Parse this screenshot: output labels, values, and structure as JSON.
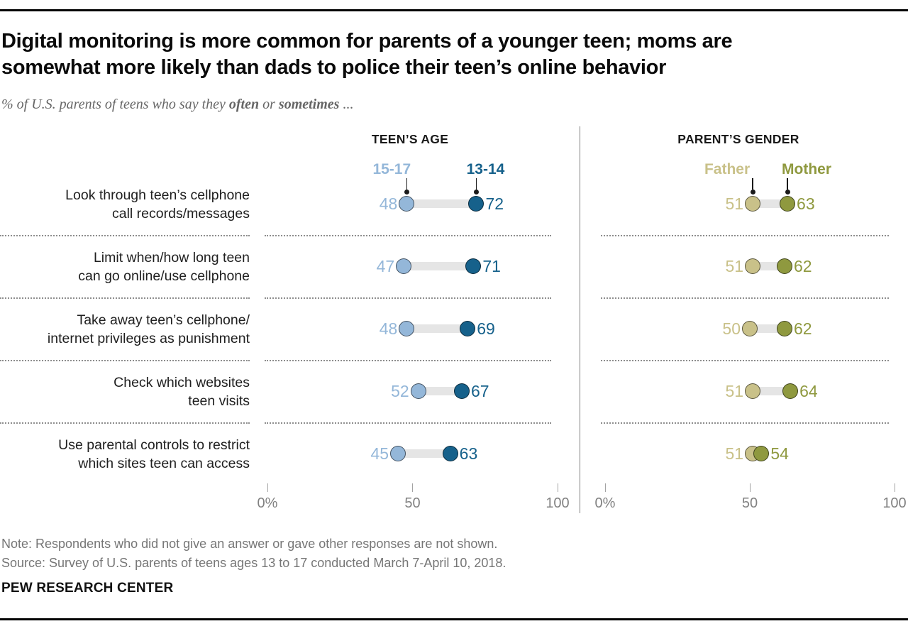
{
  "header": {
    "title_lines": [
      "Digital monitoring is more common for parents of a younger teen; moms are",
      "somewhat more likely than dads to police their teen’s online behavior"
    ],
    "subtitle": {
      "prefix": "% of U.S. parents of teens who say they ",
      "bold1": "often",
      "mid": " or ",
      "bold2": "sometimes",
      "suffix": " ..."
    }
  },
  "chart_data": {
    "type": "scatter",
    "subtype": "dumbbell-dot-plot",
    "categories": [
      [
        "Look through teen’s cellphone",
        "call records/messages"
      ],
      [
        "Limit when/how long teen",
        "can go online/use cellphone"
      ],
      [
        "Take away teen’s cellphone/",
        "internet privileges as punishment"
      ],
      [
        "Check which websites",
        "teen visits"
      ],
      [
        "Use parental controls to restrict",
        "which sites teen can access"
      ]
    ],
    "panels": [
      {
        "title": "TEEN’S AGE",
        "series": [
          {
            "name": "15-17",
            "color": "#94b7d9",
            "values": [
              48,
              47,
              48,
              52,
              45
            ]
          },
          {
            "name": "13-14",
            "color": "#16618b",
            "values": [
              72,
              71,
              69,
              67,
              63
            ]
          }
        ],
        "axis": {
          "min": 0,
          "max": 100,
          "ticks": [
            {
              "label": "0%",
              "value": 0
            },
            {
              "label": "50",
              "value": 50
            },
            {
              "label": "100",
              "value": 100
            }
          ]
        }
      },
      {
        "title": "PARENT’S GENDER",
        "series": [
          {
            "name": "Father",
            "color": "#c9c189",
            "values": [
              51,
              51,
              50,
              51,
              51
            ]
          },
          {
            "name": "Mother",
            "color": "#8f993f",
            "values": [
              63,
              62,
              62,
              64,
              54
            ]
          }
        ],
        "axis": {
          "min": 0,
          "max": 100,
          "ticks": [
            {
              "label": "0%",
              "value": 0
            },
            {
              "label": "50",
              "value": 50
            },
            {
              "label": "100",
              "value": 100
            }
          ]
        }
      }
    ],
    "styles": {
      "connector_color": "#e5e5e5",
      "dot_stroke": "rgba(0,0,0,0.55)",
      "pointer_color": "#1a1a1a",
      "separator_color": "#8d8d8d",
      "row_label_color": "#202020",
      "axis_label_color": "#818181",
      "tick_color": "#a3a3a3",
      "divider_color": "#808080",
      "panel_title_color": "#1a1a1a"
    }
  },
  "footer": {
    "note": "Note: Respondents who did not give an answer or gave other responses are not shown.",
    "source": "Source: Survey of U.S. parents of teens ages 13 to 17 conducted March 7-April 10, 2018.",
    "brand": "PEW RESEARCH CENTER"
  }
}
